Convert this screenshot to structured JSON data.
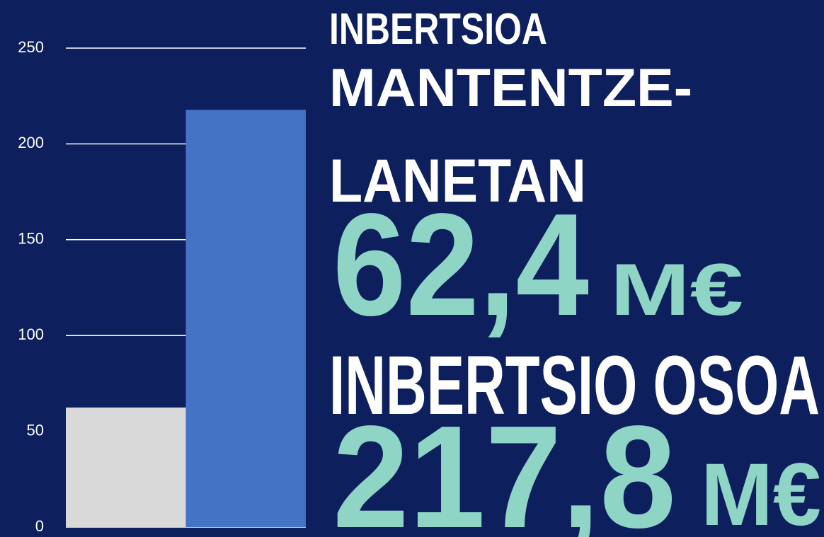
{
  "chart_data": {
    "type": "bar",
    "categories": [
      null,
      null
    ],
    "values": [
      62.4,
      217.8
    ],
    "value_labels": [
      "62,4",
      "217,8"
    ],
    "unit": "M€",
    "colors": [
      "#d9d9d9",
      "#4472c4"
    ],
    "ylim": [
      0,
      250
    ],
    "yticks": [
      0,
      50,
      100,
      150,
      200,
      250
    ],
    "grid": true,
    "annotations": [
      "INBERTSIOA",
      "MANTENTZE-",
      "LANETAN",
      "INBERTSIO OSOA"
    ]
  }
}
